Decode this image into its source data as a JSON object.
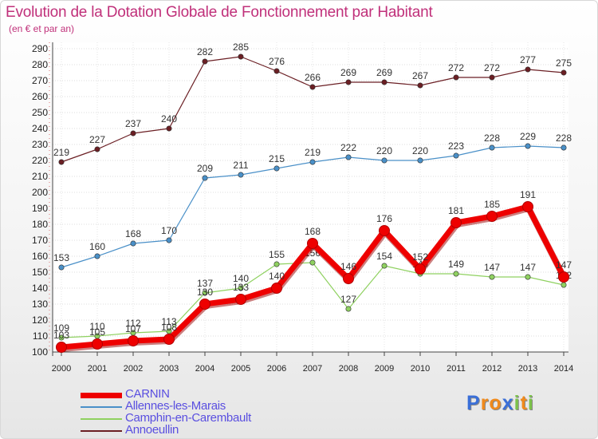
{
  "chart_data": {
    "type": "line",
    "title": "Evolution de la Dotation Globale de Fonctionnement par Habitant",
    "subtitle": "(en € et par an)",
    "categories": [
      "2000",
      "2001",
      "2002",
      "2003",
      "2004",
      "2005",
      "2006",
      "2007",
      "2008",
      "2009",
      "2010",
      "2011",
      "2012",
      "2013",
      "2014"
    ],
    "ylim": [
      100,
      290
    ],
    "ystep": 10,
    "grid": true,
    "series": [
      {
        "name": "Annoeullin",
        "color": "#6b1f24",
        "values": [
          219,
          227,
          237,
          240,
          282,
          285,
          276,
          266,
          269,
          269,
          267,
          272,
          272,
          277,
          275
        ]
      },
      {
        "name": "Allennes-les-Marais",
        "color": "#4a90c8",
        "values": [
          153,
          160,
          168,
          170,
          209,
          211,
          215,
          219,
          222,
          220,
          220,
          223,
          228,
          229,
          228
        ]
      },
      {
        "name": "Camphin-en-Carembault",
        "color": "#8fd160",
        "values": [
          109,
          110,
          112,
          113,
          137,
          140,
          155,
          156,
          127,
          154,
          149,
          149,
          147,
          147,
          142
        ]
      },
      {
        "name": "CARNIN",
        "color": "#ee0000",
        "values": [
          103,
          105,
          107,
          108,
          130,
          133,
          140,
          168,
          146,
          176,
          152,
          181,
          185,
          191,
          147
        ]
      }
    ]
  },
  "legend": [
    "CARNIN",
    "Allennes-les-Marais",
    "Camphin-en-Carembault",
    "Annoeullin"
  ],
  "logo": {
    "text": "Proxiti",
    "letters": [
      "P",
      "r",
      "o",
      "x",
      "i",
      "t",
      "i"
    ],
    "colors": [
      "#3a6fd8",
      "#f08a1c",
      "#f08a1c",
      "#3a6fd8",
      "#7cc24a",
      "#f08a1c",
      "#7cc24a"
    ]
  }
}
